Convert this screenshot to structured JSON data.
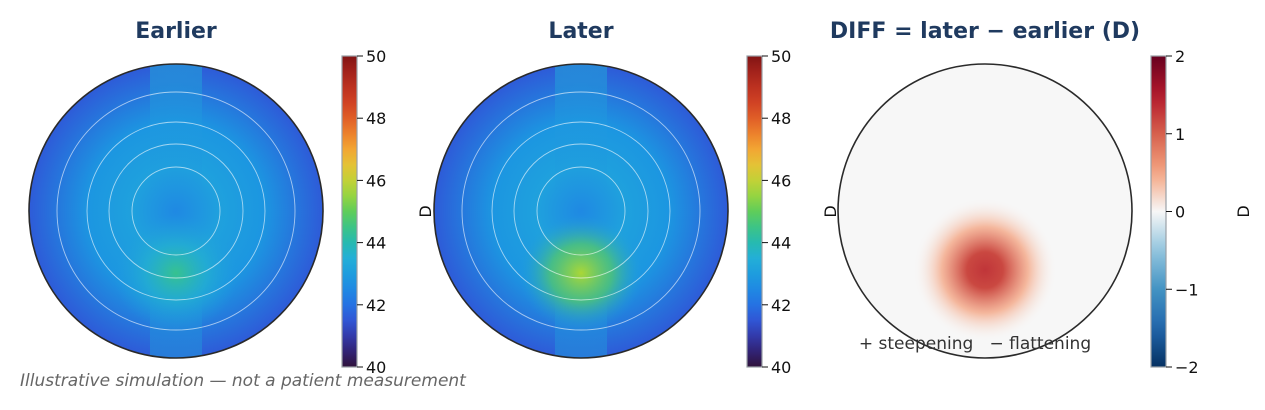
{
  "chart_data": [
    {
      "type": "heatmap",
      "title": "Earlier",
      "colorbar": {
        "label": "D",
        "range": [
          40,
          50
        ],
        "ticks": [
          "40",
          "42",
          "44",
          "46",
          "48",
          "50"
        ]
      },
      "colormap": "turbo",
      "rings": true,
      "center_value": 42.5,
      "edge_value": 42.0,
      "inferior_lobe_value": 44.4
    },
    {
      "type": "heatmap",
      "title": "Later",
      "colorbar": {
        "label": "D",
        "range": [
          40,
          50
        ],
        "ticks": [
          "40",
          "42",
          "44",
          "46",
          "48",
          "50"
        ]
      },
      "colormap": "turbo",
      "rings": true,
      "center_value": 42.5,
      "edge_value": 42.0,
      "inferior_lobe_value": 45.7
    },
    {
      "type": "heatmap",
      "title": "DIFF = later − earlier (D)",
      "colorbar": {
        "label": "D",
        "range": [
          -2,
          2
        ],
        "ticks": [
          "−2",
          "−1",
          "0",
          "1",
          "2"
        ]
      },
      "colormap": "RdBu_r",
      "rings": false,
      "peak_value": 1.3,
      "annotation": "+ steepening   − flattening"
    }
  ],
  "footer_note": "Illustrative simulation — not a patient measurement"
}
